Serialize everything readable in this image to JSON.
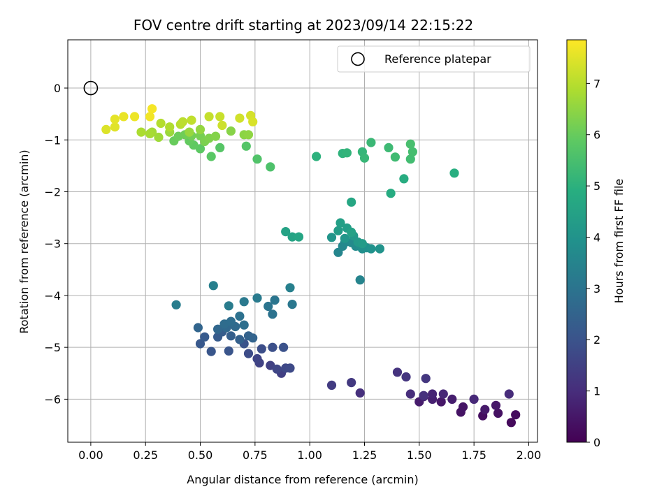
{
  "chart_data": {
    "type": "scatter",
    "title": "FOV centre drift starting at 2023/09/14 22:15:22",
    "xlabel": "Angular distance from reference (arcmin)",
    "ylabel": "Rotation from reference (arcmin)",
    "xlim": [
      -0.105,
      2.04
    ],
    "ylim": [
      -6.83,
      0.93
    ],
    "xticks": [
      "0.00",
      "0.25",
      "0.50",
      "0.75",
      "1.00",
      "1.25",
      "1.50",
      "1.75",
      "2.00"
    ],
    "xtick_values": [
      0,
      0.25,
      0.5,
      0.75,
      1.0,
      1.25,
      1.5,
      1.75,
      2.0
    ],
    "yticks": [
      "−6",
      "−5",
      "−4",
      "−3",
      "−2",
      "−1",
      "0"
    ],
    "ytick_values": [
      -6,
      -5,
      -4,
      -3,
      -2,
      -1,
      0
    ],
    "grid": true,
    "legend": {
      "position": "top-right",
      "entries": [
        "Reference platepar"
      ]
    },
    "reference_point": {
      "x": 0.0,
      "y": 0.0
    },
    "colorbar": {
      "label": "Hours from first FF file",
      "min": 0,
      "max": 7.85,
      "ticks": [
        "0",
        "1",
        "2",
        "3",
        "4",
        "5",
        "6",
        "7"
      ],
      "tick_values": [
        0,
        1,
        2,
        3,
        4,
        5,
        6,
        7
      ],
      "colormap": "viridis"
    },
    "points": [
      [
        1.92,
        -6.45,
        0.2
      ],
      [
        1.94,
        -6.3,
        0.25
      ],
      [
        1.79,
        -6.32,
        0.3
      ],
      [
        1.86,
        -6.27,
        0.35
      ],
      [
        1.69,
        -6.25,
        0.4
      ],
      [
        1.7,
        -6.15,
        0.45
      ],
      [
        1.6,
        -6.05,
        0.5
      ],
      [
        1.85,
        -6.12,
        0.5
      ],
      [
        1.8,
        -6.2,
        0.55
      ],
      [
        1.5,
        -6.05,
        0.6
      ],
      [
        1.65,
        -6.0,
        0.65
      ],
      [
        1.56,
        -6.0,
        0.7
      ],
      [
        1.52,
        -5.95,
        0.75
      ],
      [
        1.56,
        -5.9,
        0.8
      ],
      [
        1.61,
        -5.9,
        0.85
      ],
      [
        1.75,
        -6.0,
        0.9
      ],
      [
        1.91,
        -5.9,
        0.95
      ],
      [
        1.46,
        -5.9,
        1.0
      ],
      [
        1.23,
        -5.88,
        1.05
      ],
      [
        1.52,
        -5.93,
        1.1
      ],
      [
        1.4,
        -5.48,
        1.15
      ],
      [
        1.44,
        -5.57,
        1.2
      ],
      [
        1.53,
        -5.6,
        1.25
      ],
      [
        1.19,
        -5.68,
        1.3
      ],
      [
        1.1,
        -5.73,
        1.35
      ],
      [
        0.87,
        -5.5,
        1.45
      ],
      [
        0.82,
        -5.35,
        1.5
      ],
      [
        0.77,
        -5.3,
        1.55
      ],
      [
        0.76,
        -5.22,
        1.6
      ],
      [
        0.85,
        -5.42,
        1.65
      ],
      [
        0.89,
        -5.4,
        1.7
      ],
      [
        0.91,
        -5.4,
        1.75
      ],
      [
        0.72,
        -5.12,
        1.8
      ],
      [
        0.78,
        -5.03,
        1.85
      ],
      [
        0.83,
        -5.0,
        1.9
      ],
      [
        0.88,
        -5.0,
        1.95
      ],
      [
        0.7,
        -4.93,
        2.0
      ],
      [
        0.63,
        -5.07,
        2.05
      ],
      [
        0.55,
        -5.08,
        2.1
      ],
      [
        0.5,
        -4.93,
        2.15
      ],
      [
        0.52,
        -4.8,
        2.2
      ],
      [
        0.58,
        -4.8,
        2.25
      ],
      [
        0.6,
        -4.7,
        2.3
      ],
      [
        0.64,
        -4.78,
        2.35
      ],
      [
        0.68,
        -4.85,
        2.4
      ],
      [
        0.72,
        -4.78,
        2.45
      ],
      [
        0.74,
        -4.82,
        2.5
      ],
      [
        0.49,
        -4.62,
        2.55
      ],
      [
        0.58,
        -4.65,
        2.6
      ],
      [
        0.62,
        -4.62,
        2.65
      ],
      [
        0.66,
        -4.6,
        2.7
      ],
      [
        0.61,
        -4.55,
        2.75
      ],
      [
        0.64,
        -4.5,
        2.8
      ],
      [
        0.7,
        -4.57,
        2.85
      ],
      [
        0.68,
        -4.4,
        2.9
      ],
      [
        0.83,
        -4.36,
        2.95
      ],
      [
        0.81,
        -4.21,
        3.0
      ],
      [
        0.84,
        -4.09,
        3.05
      ],
      [
        0.92,
        -4.17,
        3.1
      ],
      [
        0.7,
        -4.12,
        3.15
      ],
      [
        0.76,
        -4.05,
        3.2
      ],
      [
        0.63,
        -4.2,
        3.25
      ],
      [
        0.39,
        -4.18,
        3.3
      ],
      [
        0.56,
        -3.81,
        3.35
      ],
      [
        0.91,
        -3.85,
        3.4
      ],
      [
        1.23,
        -3.7,
        3.5
      ],
      [
        1.13,
        -3.17,
        3.55
      ],
      [
        1.15,
        -3.05,
        3.6
      ],
      [
        1.16,
        -2.98,
        3.65
      ],
      [
        1.19,
        -2.98,
        3.7
      ],
      [
        1.21,
        -3.05,
        3.75
      ],
      [
        1.23,
        -3.05,
        3.8
      ],
      [
        1.24,
        -3.1,
        3.85
      ],
      [
        1.26,
        -3.08,
        3.9
      ],
      [
        1.28,
        -3.1,
        3.95
      ],
      [
        1.32,
        -3.1,
        4.0
      ],
      [
        1.1,
        -2.88,
        4.05
      ],
      [
        1.16,
        -2.9,
        4.1
      ],
      [
        1.2,
        -2.85,
        4.15
      ],
      [
        1.22,
        -2.97,
        4.2
      ],
      [
        1.24,
        -3.0,
        4.25
      ],
      [
        1.13,
        -2.75,
        4.3
      ],
      [
        1.17,
        -2.7,
        4.35
      ],
      [
        1.14,
        -2.6,
        4.4
      ],
      [
        1.19,
        -2.78,
        4.45
      ],
      [
        0.89,
        -2.77,
        4.5
      ],
      [
        0.92,
        -2.87,
        4.55
      ],
      [
        0.95,
        -2.87,
        4.6
      ],
      [
        1.19,
        -2.2,
        4.65
      ],
      [
        1.37,
        -2.03,
        4.8
      ],
      [
        1.43,
        -1.75,
        4.85
      ],
      [
        1.66,
        -1.64,
        4.9
      ],
      [
        1.03,
        -1.32,
        5.0
      ],
      [
        1.15,
        -1.26,
        5.05
      ],
      [
        1.17,
        -1.25,
        5.1
      ],
      [
        1.24,
        -1.23,
        5.15
      ],
      [
        1.25,
        -1.35,
        5.2
      ],
      [
        1.28,
        -1.05,
        5.25
      ],
      [
        1.36,
        -1.15,
        5.3
      ],
      [
        1.39,
        -1.33,
        5.35
      ],
      [
        1.46,
        -1.37,
        5.4
      ],
      [
        1.47,
        -1.23,
        5.45
      ],
      [
        1.46,
        -1.08,
        5.5
      ],
      [
        0.82,
        -1.52,
        5.6
      ],
      [
        0.76,
        -1.37,
        5.65
      ],
      [
        0.71,
        -1.12,
        5.7
      ],
      [
        0.59,
        -1.15,
        5.75
      ],
      [
        0.55,
        -1.32,
        5.8
      ],
      [
        0.5,
        -1.17,
        5.85
      ],
      [
        0.47,
        -1.1,
        5.9
      ],
      [
        0.45,
        -1.02,
        5.95
      ],
      [
        0.38,
        -1.02,
        6.0
      ],
      [
        0.4,
        -0.93,
        6.05
      ],
      [
        0.43,
        -0.9,
        6.1
      ],
      [
        0.46,
        -0.92,
        6.15
      ],
      [
        0.5,
        -0.92,
        6.2
      ],
      [
        0.52,
        -1.03,
        6.25
      ],
      [
        0.54,
        -0.97,
        6.3
      ],
      [
        0.57,
        -0.93,
        6.35
      ],
      [
        0.64,
        -0.83,
        6.4
      ],
      [
        0.7,
        -0.9,
        6.45
      ],
      [
        0.72,
        -0.9,
        6.5
      ],
      [
        0.5,
        -0.8,
        6.55
      ],
      [
        0.45,
        -0.85,
        6.6
      ],
      [
        0.36,
        -0.85,
        6.65
      ],
      [
        0.31,
        -0.95,
        6.7
      ],
      [
        0.28,
        -0.85,
        6.75
      ],
      [
        0.27,
        -0.88,
        6.8
      ],
      [
        0.23,
        -0.85,
        6.85
      ],
      [
        0.36,
        -0.75,
        6.9
      ],
      [
        0.32,
        -0.68,
        6.95
      ],
      [
        0.41,
        -0.7,
        7.0
      ],
      [
        0.42,
        -0.65,
        7.05
      ],
      [
        0.46,
        -0.62,
        7.1
      ],
      [
        0.54,
        -0.55,
        7.15
      ],
      [
        0.59,
        -0.55,
        7.2
      ],
      [
        0.6,
        -0.72,
        7.25
      ],
      [
        0.68,
        -0.58,
        7.3
      ],
      [
        0.73,
        -0.53,
        7.35
      ],
      [
        0.74,
        -0.65,
        7.4
      ],
      [
        0.07,
        -0.8,
        7.45
      ],
      [
        0.11,
        -0.75,
        7.5
      ],
      [
        0.11,
        -0.6,
        7.55
      ],
      [
        0.15,
        -0.55,
        7.6
      ],
      [
        0.2,
        -0.55,
        7.65
      ],
      [
        0.27,
        -0.55,
        7.7
      ],
      [
        0.28,
        -0.4,
        7.75
      ]
    ]
  }
}
